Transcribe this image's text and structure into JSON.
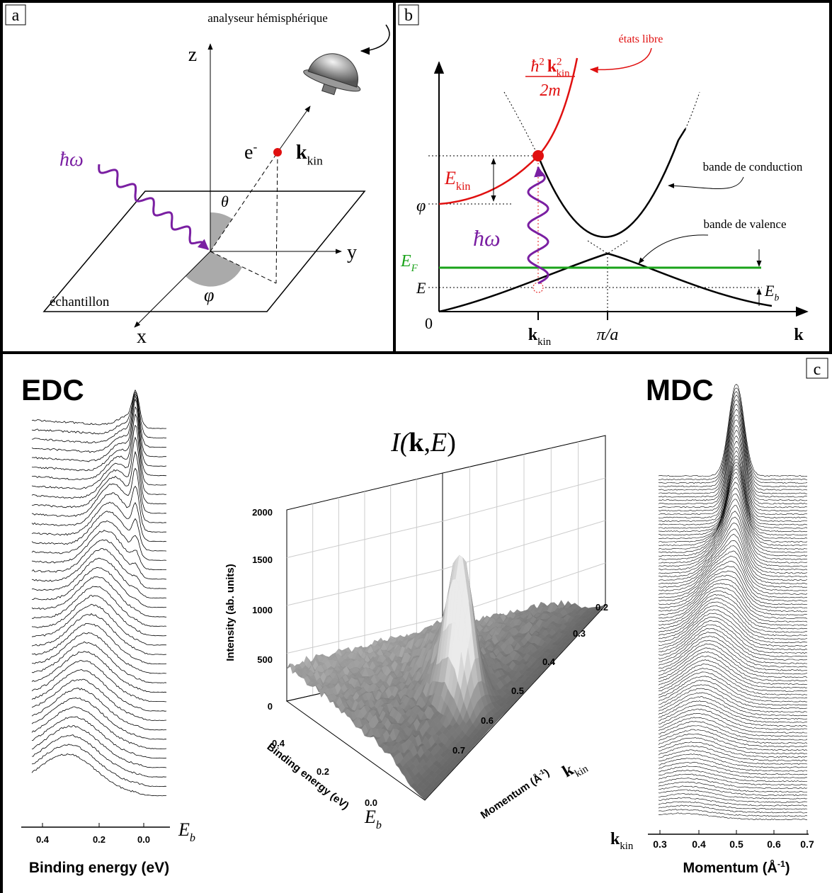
{
  "panel_a": {
    "label": "a",
    "analyzer": "analyseur hémisphérique",
    "z": "z",
    "y": "y",
    "x": "x",
    "electron": {
      "base": "e",
      "sup": "-"
    },
    "k_kin": {
      "base": "k",
      "sub": "kin"
    },
    "photon": "ħω",
    "theta": "θ",
    "phi": "φ",
    "sample": "échantillon"
  },
  "panel_b": {
    "label": "b",
    "free_states": "états libre",
    "formula": {
      "hbar": "ħ",
      "hbar_sup": "2",
      "k": "k",
      "k_sup": "2",
      "k_sub": "kin",
      "denominator": "2m"
    },
    "e_kin": {
      "base": "E",
      "sub": "kin"
    },
    "work_function": "φ",
    "photon": "ħω",
    "e_f": {
      "base": "E",
      "sub": "F"
    },
    "e": "E",
    "origin": "0",
    "k_kin": {
      "base": "k",
      "sub": "kin"
    },
    "zone_edge": "π/a",
    "k_axis": "k",
    "conduction": "bande de conduction",
    "valence": "bande de valence",
    "e_b": {
      "base": "E",
      "sub": "b"
    }
  },
  "panel_c": {
    "label": "c",
    "edc": {
      "title": "EDC",
      "ticks": [
        "0.4",
        "0.2",
        "0.0"
      ],
      "e_b": {
        "base": "E",
        "sub": "b"
      },
      "axis_label": "Binding energy (eV)"
    },
    "surface": {
      "title": {
        "pre": "I(",
        "k": "k",
        "mid": ",",
        "e": "E",
        "post": ")"
      },
      "z_label": "Intensity (ab. units)",
      "z_ticks": [
        "2000",
        "1500",
        "1000",
        "500",
        "0"
      ],
      "energy_label": "Binding energy (eV)",
      "energy_ticks": [
        "0.4",
        "0.2",
        "0.0"
      ],
      "e_b": {
        "base": "E",
        "sub": "b"
      },
      "momentum_label": {
        "text": "Momentum (Å",
        "sup": "-1",
        "close": ")"
      },
      "momentum_ticks": [
        "0.2",
        "0.3",
        "0.4",
        "0.5",
        "0.6",
        "0.7"
      ],
      "k_kin": {
        "base": "k",
        "sub": "kin"
      }
    },
    "mdc": {
      "title": "MDC",
      "k_kin": {
        "base": "k",
        "sub": "kin"
      },
      "ticks": [
        "0.3",
        "0.4",
        "0.5",
        "0.6",
        "0.7"
      ],
      "axis_label": {
        "text": "Momentum (Å",
        "sup": "-1",
        "close": ")"
      }
    }
  }
}
